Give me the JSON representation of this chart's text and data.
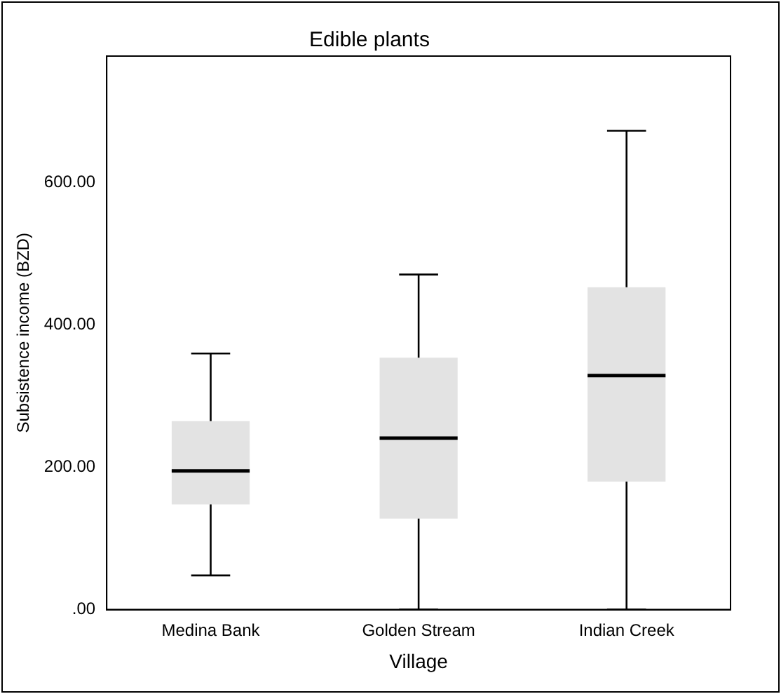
{
  "chart_data": {
    "type": "box",
    "title": "Edible plants",
    "xlabel": "Village",
    "ylabel": "Subsistence income (BZD)",
    "categories": [
      "Medina Bank",
      "Golden Stream",
      "Indian Creek"
    ],
    "boxes": [
      {
        "low": 48,
        "q1": 148,
        "median": 195,
        "q3": 265,
        "high": 360
      },
      {
        "low": 0,
        "q1": 128,
        "median": 241,
        "q3": 354,
        "high": 471
      },
      {
        "low": 0,
        "q1": 180,
        "median": 329,
        "q3": 453,
        "high": 673
      }
    ],
    "color": "#e3e3e3",
    "ylim": [
      0,
      778
    ],
    "yticks": [
      {
        "value": 0,
        "label": ".00"
      },
      {
        "value": 200,
        "label": "200.00"
      },
      {
        "value": 400,
        "label": "400.00"
      },
      {
        "value": 600,
        "label": "600.00"
      }
    ],
    "grid": false,
    "legend": false
  }
}
